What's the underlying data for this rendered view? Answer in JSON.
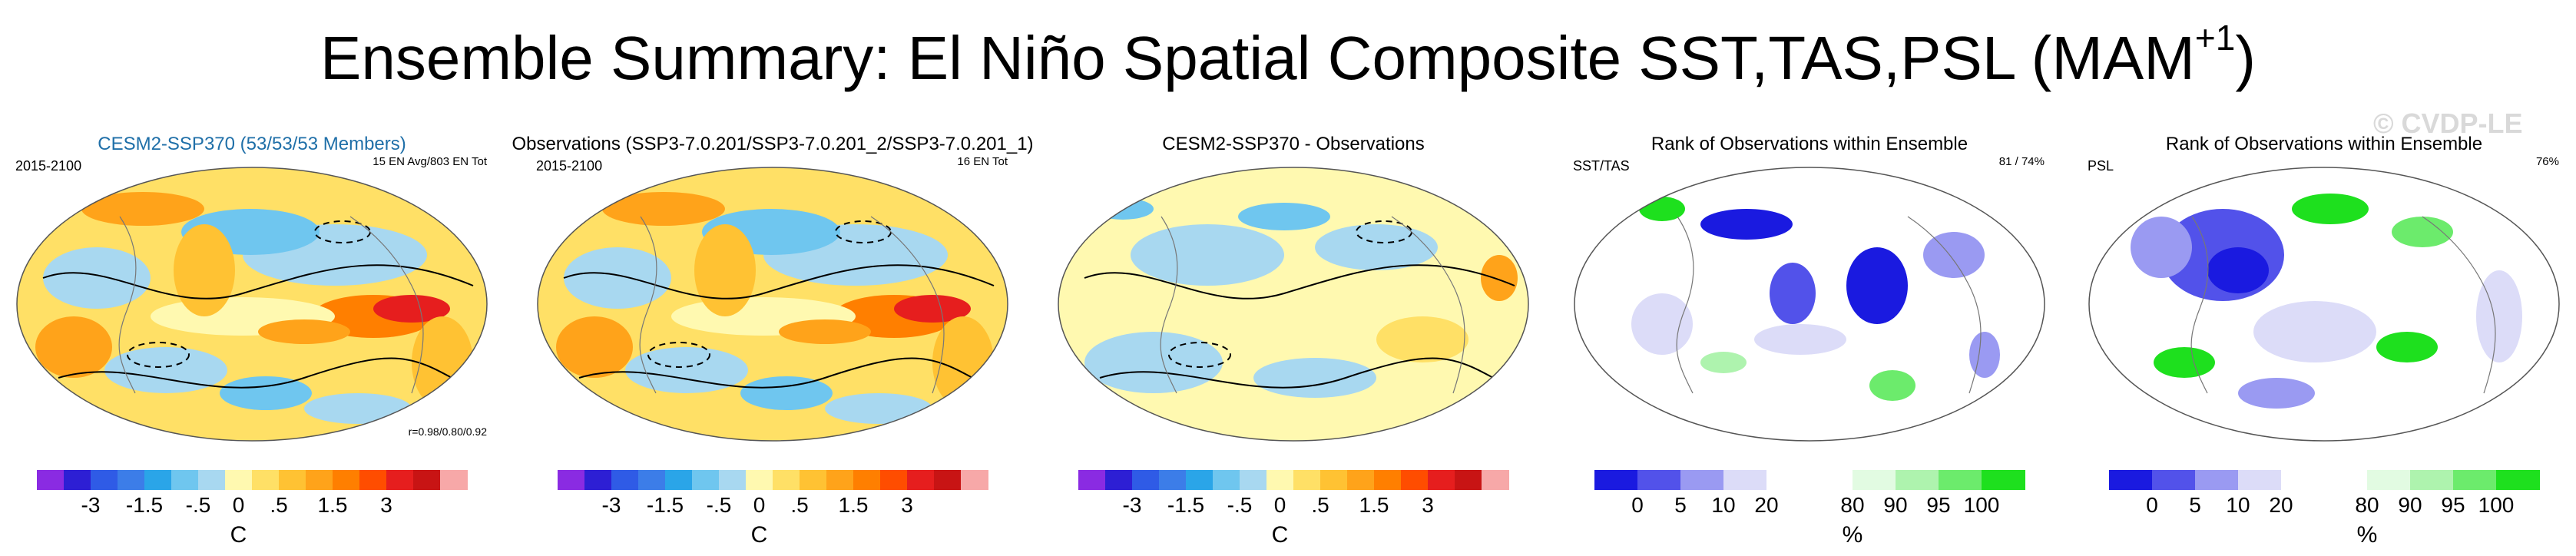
{
  "title": "Ensemble Summary: El Niño Spatial Composite SST,TAS,PSL (MAM",
  "title_sup": "+1",
  "title_end": ")",
  "watermark": "© CVDP-LE",
  "panels": [
    {
      "title": "CESM2-SSP370 (53/53/53 Members)",
      "left_label": "2015-2100",
      "right_label": "15 EN Avg/803 EN Tot",
      "corner_label": "r=0.98/0.80/0.92"
    },
    {
      "title": "Observations (SSP3-7.0.201/SSP3-7.0.201_2/SSP3-7.0.201_1)",
      "left_label": "2015-2100",
      "right_label": "16 EN Tot"
    },
    {
      "title": "CESM2-SSP370 - Observations"
    },
    {
      "title": "Rank of Observations within Ensemble",
      "left_label": "SST/TAS",
      "right_label": "81 /  74%"
    },
    {
      "title": "Rank of Observations within Ensemble",
      "left_label": "PSL",
      "right_label": "76%"
    }
  ],
  "colorbar_diff": {
    "colors": [
      "#8a2be2",
      "#2d1fd4",
      "#2f5be6",
      "#3c7de8",
      "#2aa5e8",
      "#6fc6ef",
      "#a8d8f0",
      "#fff9b0",
      "#ffe066",
      "#ffc233",
      "#ffa31a",
      "#ff7f00",
      "#ff4d00",
      "#e61e1e",
      "#c81414",
      "#f7a8a8"
    ],
    "ticks": [
      "-3",
      "-1.5",
      "-.5",
      "0",
      ".5",
      "1.5",
      "3"
    ],
    "tick_edges": [
      2,
      4,
      6,
      7.5,
      9,
      11,
      13
    ],
    "unit": "C"
  },
  "colorbar_rank": {
    "colors": [
      "#1a1ae0",
      "#5252ea",
      "#9a9af2",
      "#dcdcf8",
      "#ffffff",
      "#ffffff",
      "#e2fbe2",
      "#aef3ae",
      "#6ceb6c",
      "#1ee01e"
    ],
    "ticks": [
      "0",
      "5",
      "10",
      "20",
      "80",
      "90",
      "95",
      "100"
    ],
    "tick_edges": [
      1,
      2,
      3,
      4,
      6,
      7,
      8,
      9
    ],
    "unit": "%"
  },
  "chart_data": [
    {
      "type": "heatmap",
      "title": "CESM2-SSP370 (53/53/53 Members)",
      "period": "2015-2100",
      "fields": "SST,TAS,PSL",
      "units": "C",
      "colorbar_ticks": [
        -3,
        -1.5,
        -0.5,
        0,
        0.5,
        1.5,
        3
      ],
      "pattern_correlations": [
        0.98,
        0.8,
        0.92
      ],
      "events": "15 EN Avg/803 EN Tot"
    },
    {
      "type": "heatmap",
      "title": "Observations (SSP3-7.0.201/SSP3-7.0.201_2/SSP3-7.0.201_1)",
      "period": "2015-2100",
      "units": "C",
      "colorbar_ticks": [
        -3,
        -1.5,
        -0.5,
        0,
        0.5,
        1.5,
        3
      ],
      "events": "16 EN Tot"
    },
    {
      "type": "heatmap",
      "title": "CESM2-SSP370 - Observations",
      "units": "C",
      "colorbar_ticks": [
        -3,
        -1.5,
        -0.5,
        0,
        0.5,
        1.5,
        3
      ]
    },
    {
      "type": "heatmap",
      "title": "Rank of Observations within Ensemble",
      "variable": "SST/TAS",
      "units": "%",
      "colorbar_ticks": [
        0,
        5,
        10,
        20,
        80,
        90,
        95,
        100
      ],
      "percent_within": [
        81,
        74
      ]
    },
    {
      "type": "heatmap",
      "title": "Rank of Observations within Ensemble",
      "variable": "PSL",
      "units": "%",
      "colorbar_ticks": [
        0,
        5,
        10,
        20,
        80,
        90,
        95,
        100
      ],
      "percent_within": [
        76
      ]
    }
  ]
}
